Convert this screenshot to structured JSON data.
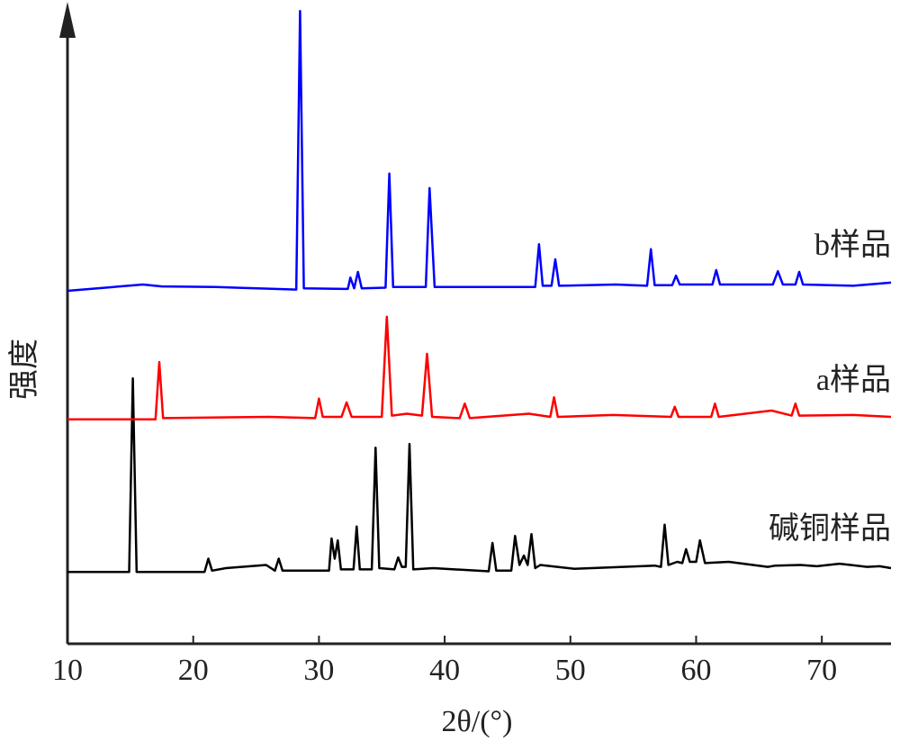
{
  "chart_data": {
    "type": "line",
    "xlabel": "2θ/(°)",
    "ylabel": "强度",
    "xlim": [
      10,
      75.5
    ],
    "ylim": [
      0,
      102
    ],
    "xticks": [
      10,
      20,
      30,
      40,
      50,
      60,
      70
    ],
    "series": [
      {
        "name": "碱铜样品",
        "color": "#000000",
        "x": [
          10,
          14.9,
          15.2,
          15.5,
          20.9,
          21.2,
          21.5,
          22.6,
          25.8,
          26.5,
          26.8,
          27.1,
          30.8,
          31.0,
          31.25,
          31.5,
          31.75,
          32.75,
          33.0,
          33.25,
          34.2,
          34.5,
          34.8,
          36.0,
          36.3,
          36.6,
          36.9,
          37.2,
          37.5,
          39.1,
          43.5,
          43.8,
          44.1,
          45.3,
          45.6,
          45.95,
          46.3,
          46.6,
          46.9,
          47.2,
          47.6,
          50.3,
          56.7,
          57.2,
          57.5,
          57.8,
          58.5,
          58.9,
          59.2,
          59.5,
          60.0,
          60.3,
          60.7,
          62.6,
          65.7,
          66.3,
          68.3,
          69.6,
          71.4,
          72.3,
          73.6,
          74.6,
          75.5
        ],
        "values": [
          11.4,
          11.4,
          42.1,
          11.4,
          11.4,
          13.5,
          11.6,
          12.0,
          12.5,
          11.6,
          13.5,
          11.6,
          11.6,
          16.7,
          13.5,
          16.4,
          11.8,
          11.8,
          18.6,
          11.8,
          11.8,
          31.1,
          12.0,
          11.8,
          13.7,
          12.2,
          12.2,
          31.7,
          11.8,
          12.0,
          11.5,
          16.0,
          11.6,
          11.6,
          17.1,
          12.5,
          14.0,
          12.5,
          17.4,
          12.0,
          12.5,
          11.9,
          12.4,
          12.2,
          18.9,
          12.5,
          13.0,
          12.8,
          15.0,
          13.0,
          13.0,
          16.4,
          12.8,
          13.0,
          12.2,
          12.4,
          12.5,
          12.3,
          12.7,
          12.5,
          12.2,
          12.3,
          12.0
        ]
      },
      {
        "name": "a样品",
        "color": "#ff0000",
        "x": [
          10,
          17.0,
          17.3,
          17.6,
          26.0,
          29.7,
          30.0,
          30.3,
          31.8,
          32.2,
          32.6,
          35.0,
          35.4,
          35.8,
          37.0,
          38.2,
          38.6,
          39.0,
          41.2,
          41.6,
          42.0,
          46.7,
          48.4,
          48.7,
          49.0,
          53.4,
          58.0,
          58.3,
          58.6,
          61.2,
          61.5,
          61.8,
          66.0,
          67.6,
          67.9,
          68.2,
          72.5,
          75.5
        ],
        "values": [
          35.6,
          35.6,
          44.7,
          35.8,
          36.0,
          35.8,
          38.9,
          36.0,
          36.0,
          38.3,
          36.0,
          36.0,
          51.9,
          36.2,
          36.5,
          36.2,
          46.0,
          36.0,
          35.8,
          38.1,
          35.8,
          36.5,
          36.0,
          39.1,
          36.0,
          36.3,
          36.0,
          37.6,
          36.0,
          36.0,
          38.1,
          36.0,
          37.0,
          36.2,
          38.1,
          36.2,
          36.3,
          36.0
        ]
      },
      {
        "name": "b样品",
        "color": "#0000ff",
        "x": [
          10,
          16.0,
          17.5,
          21.8,
          28.2,
          28.5,
          28.8,
          32.3,
          32.5,
          32.8,
          33.1,
          33.4,
          35.3,
          35.6,
          35.9,
          38.5,
          38.8,
          39.2,
          47.2,
          47.5,
          47.8,
          48.5,
          48.8,
          49.1,
          53.6,
          56.1,
          56.4,
          56.7,
          58.1,
          58.4,
          58.7,
          61.3,
          61.6,
          61.9,
          66.1,
          66.5,
          66.9,
          67.9,
          68.2,
          68.5,
          72.5,
          75.5
        ],
        "values": [
          56.0,
          57.0,
          56.7,
          56.6,
          56.2,
          100.4,
          56.4,
          56.3,
          58.1,
          56.4,
          59.0,
          56.4,
          56.5,
          74.6,
          56.6,
          56.6,
          72.3,
          56.6,
          56.6,
          63.4,
          56.8,
          56.8,
          61.0,
          56.8,
          57.0,
          56.8,
          62.6,
          56.9,
          56.9,
          58.4,
          57.0,
          57.0,
          59.3,
          57.0,
          57.0,
          59.1,
          57.0,
          57.0,
          59.0,
          57.0,
          56.8,
          57.3
        ]
      }
    ]
  }
}
